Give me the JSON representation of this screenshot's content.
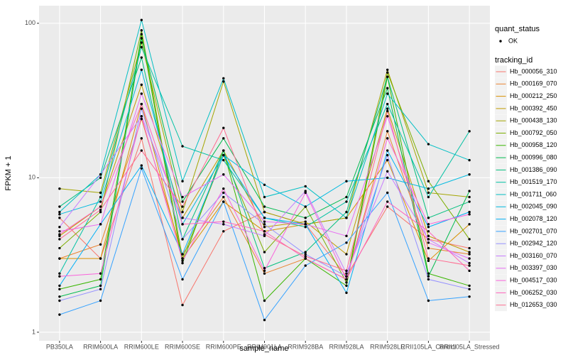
{
  "chart_data": {
    "type": "line",
    "log_y": true,
    "grid": true,
    "x_label": "sample_name",
    "y_label": "FPKM + 1",
    "ylim": [
      0.88,
      130
    ],
    "yticks": [
      1,
      10,
      100
    ],
    "point_color": "#000000",
    "quant_status_title": "quant_status",
    "quant_status_levels": [
      "OK"
    ],
    "legend_title": "tracking_id",
    "legend_position": "right",
    "categories": [
      "PB350LA",
      "RRIM600LA",
      "RRIM600LE",
      "RRIM600SE",
      "RRIM600PE",
      "RRIM901LA",
      "RRIM928BA",
      "RRIM928LA",
      "RRIM928LE",
      "RRII105LA_Control",
      "RRII105LA_Stressed"
    ],
    "series": [
      {
        "name": "Hb_000056_310",
        "color": "#F8766D",
        "values": [
          5.5,
          3,
          18,
          1.5,
          4.5,
          6,
          5,
          2.3,
          6.5,
          4,
          3.5
        ]
      },
      {
        "name": "Hb_000169_070",
        "color": "#EA8331",
        "values": [
          3,
          3.7,
          24,
          3.2,
          7.5,
          2.4,
          3,
          2.2,
          20,
          3.5,
          3.2
        ]
      },
      {
        "name": "Hb_000212_250",
        "color": "#D89000",
        "values": [
          3,
          3,
          30,
          3,
          7,
          4.5,
          5,
          5.5,
          13,
          2.9,
          5
        ]
      },
      {
        "name": "Hb_000392_450",
        "color": "#C09B00",
        "values": [
          4.2,
          6.5,
          40,
          5.5,
          15,
          4.8,
          5.2,
          3.2,
          28,
          4.2,
          3.3
        ]
      },
      {
        "name": "Hb_000438_130",
        "color": "#A3A500",
        "values": [
          8.5,
          8,
          75,
          6,
          42,
          6,
          5,
          5.5,
          50,
          8,
          7.5
        ]
      },
      {
        "name": "Hb_000792_050",
        "color": "#7CAE00",
        "values": [
          3.5,
          6,
          90,
          3,
          14,
          3.3,
          6.5,
          2.1,
          48,
          9.5,
          4
        ]
      },
      {
        "name": "Hb_000958_120",
        "color": "#39B600",
        "values": [
          1.9,
          2.2,
          85,
          2.8,
          15,
          1.6,
          3,
          2,
          45,
          2.4,
          2
        ]
      },
      {
        "name": "Hb_000996_080",
        "color": "#00BB4E",
        "values": [
          1.7,
          2,
          80,
          7,
          18,
          6.5,
          5.5,
          7.5,
          38,
          2.3,
          8.2
        ]
      },
      {
        "name": "Hb_001386_090",
        "color": "#00BF7D",
        "values": [
          6.5,
          10,
          60,
          4,
          15,
          2.6,
          3.3,
          6,
          45,
          5.5,
          7
        ]
      },
      {
        "name": "Hb_001519_170",
        "color": "#00C1A3",
        "values": [
          2.4,
          7.5,
          70,
          16,
          13,
          5.5,
          4.8,
          7,
          30,
          7.5,
          20
        ]
      },
      {
        "name": "Hb_001711_060",
        "color": "#00BFC4",
        "values": [
          6,
          10.5,
          105,
          9.5,
          44,
          7.5,
          8.8,
          5.5,
          35,
          16.5,
          13
        ]
      },
      {
        "name": "Hb_002045_090",
        "color": "#00BAE0",
        "values": [
          5.8,
          7,
          50,
          5,
          14,
          9,
          6.5,
          9.5,
          10,
          8.5,
          10.5
        ]
      },
      {
        "name": "Hb_002078_120",
        "color": "#00B0F6",
        "values": [
          2,
          5,
          12,
          3.2,
          14,
          5.5,
          5,
          1.8,
          15,
          4.8,
          6
        ]
      },
      {
        "name": "Hb_002701_070",
        "color": "#35A2FF",
        "values": [
          1.3,
          1.6,
          11.5,
          2.2,
          7,
          1.2,
          2.7,
          3.8,
          8,
          1.6,
          1.7
        ]
      },
      {
        "name": "Hb_002942_120",
        "color": "#9590FF",
        "values": [
          1.6,
          1.9,
          28,
          4,
          8,
          5,
          3.2,
          2.3,
          14,
          2.2,
          1.9
        ]
      },
      {
        "name": "Hb_003160_070",
        "color": "#C77CFF",
        "values": [
          4.8,
          10.5,
          25,
          5.5,
          5,
          4.2,
          8.2,
          2.4,
          11,
          4,
          2.8
        ]
      },
      {
        "name": "Hb_003397_030",
        "color": "#E76BF3",
        "values": [
          4.5,
          5,
          35,
          7.5,
          10.5,
          5.2,
          5,
          4.2,
          25,
          3.8,
          3
        ]
      },
      {
        "name": "Hb_004517_030",
        "color": "#FA62DB",
        "values": [
          2.3,
          2.4,
          25,
          2.9,
          8.5,
          2.5,
          8,
          2.2,
          18,
          5,
          5.8
        ]
      },
      {
        "name": "Hb_006252_030",
        "color": "#FF62BC",
        "values": [
          4.3,
          6.5,
          30,
          5,
          5.2,
          4.5,
          3,
          2.2,
          7,
          4.5,
          2.5
        ]
      },
      {
        "name": "Hb_012653_030",
        "color": "#FF6C91",
        "values": [
          4,
          6.2,
          15,
          6.5,
          21,
          4.3,
          3.1,
          2.5,
          27,
          3,
          2.7
        ]
      }
    ]
  }
}
